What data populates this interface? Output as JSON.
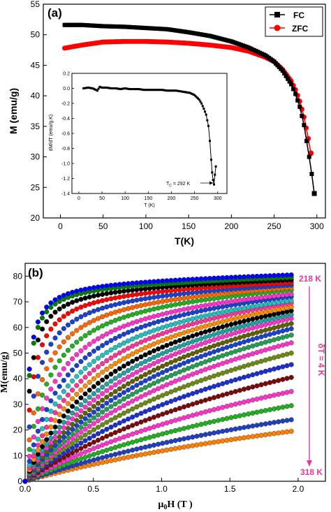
{
  "colors": {
    "fc": "#000000",
    "zfc": "#ff0000",
    "annotation": "#e6389e",
    "mh_series": [
      "#ff7f00",
      "#1f3fc0",
      "#20b020",
      "#ff33cc",
      "#7a0a0a",
      "#1a2fd0",
      "#6a8a10",
      "#ff33cc",
      "#20a050",
      "#1a40d0",
      "#606000",
      "#ff33cc",
      "#20a0a0",
      "#000000",
      "#ff8c00",
      "#ff3399",
      "#20c0c0",
      "#1a40d0",
      "#ff33cc",
      "#20b020",
      "#ff6600",
      "#1a40d0",
      "#ff0000",
      "#000000",
      "#008000",
      "#0000ff"
    ]
  },
  "panel_a": {
    "label": "(a)",
    "chart_data": {
      "type": "line",
      "xlabel": "T(K)",
      "ylabel": "M (emu/g)",
      "xlim": [
        -20,
        310
      ],
      "ylim": [
        20,
        55
      ],
      "xticks": [
        "0",
        "50",
        "100",
        "150",
        "200",
        "250",
        "300"
      ],
      "yticks": [
        "20",
        "25",
        "30",
        "35",
        "40",
        "45",
        "50",
        "55"
      ],
      "legend_position": "top-right",
      "series": [
        {
          "name": "FC",
          "marker": "square",
          "x": [
            5,
            25,
            50,
            75,
            100,
            125,
            150,
            175,
            200,
            220,
            240,
            250,
            260,
            270,
            275,
            280,
            285,
            288,
            291,
            294,
            297
          ],
          "y": [
            51.6,
            51.6,
            51.4,
            51.3,
            51.1,
            50.9,
            50.4,
            49.8,
            48.9,
            47.9,
            46.6,
            45.6,
            44.1,
            41.9,
            40.3,
            38.2,
            35.2,
            32.6,
            30.0,
            27.2,
            24.0
          ]
        },
        {
          "name": "ZFC",
          "marker": "circle",
          "x": [
            5,
            25,
            50,
            75,
            100,
            125,
            150,
            175,
            200,
            220,
            240,
            250,
            260,
            270,
            275,
            280,
            285,
            290,
            293
          ],
          "y": [
            47.8,
            48.3,
            48.8,
            48.9,
            48.9,
            48.8,
            48.6,
            48.3,
            47.9,
            47.3,
            46.3,
            45.6,
            44.3,
            42.4,
            41.0,
            39.1,
            36.5,
            33.0,
            30.6
          ]
        }
      ],
      "inset": {
        "type": "line",
        "xlabel": "T (K)",
        "ylabel": "dM/dT (emu/g.K)",
        "xlim": [
          -15,
          320
        ],
        "ylim": [
          -1.4,
          0.2
        ],
        "xticks": [
          "0",
          "50",
          "100",
          "150",
          "200",
          "250",
          "300"
        ],
        "yticks": [
          "0.2",
          "0.0",
          "-0.2",
          "-0.4",
          "-0.6",
          "-0.8",
          "-1.0",
          "-1.2",
          "-1.4"
        ],
        "annotation": "T",
        "annotation_sub": "C",
        "annotation_rest": " = 292 K",
        "annotation_x": 292,
        "annotation_y": -1.27,
        "series": [
          {
            "marker": "square",
            "x": [
              10,
              20,
              30,
              40,
              45,
              50,
              60,
              70,
              80,
              90,
              100,
              110,
              120,
              130,
              140,
              150,
              160,
              170,
              180,
              190,
              200,
              210,
              220,
              230,
              240,
              250,
              255,
              260,
              265,
              270,
              275,
              280,
              283,
              286,
              288,
              290,
              292,
              294,
              296
            ],
            "y": [
              0.0,
              0.01,
              0.0,
              -0.03,
              0.02,
              0.01,
              0.01,
              0.0,
              0.0,
              -0.01,
              0.0,
              -0.01,
              -0.01,
              -0.01,
              -0.02,
              -0.02,
              -0.02,
              -0.02,
              -0.02,
              -0.03,
              -0.03,
              -0.03,
              -0.04,
              -0.05,
              -0.06,
              -0.09,
              -0.12,
              -0.15,
              -0.2,
              -0.27,
              -0.35,
              -0.5,
              -0.7,
              -0.95,
              -1.12,
              -1.22,
              -1.28,
              -1.15,
              -1.04
            ]
          }
        ]
      }
    }
  },
  "panel_b": {
    "label": "(b)",
    "chart_data": {
      "type": "scatter",
      "xlabel_main": "μ",
      "xlabel_sub": "0",
      "xlabel_rest": "H (T )",
      "ylabel": "M(emu/g)",
      "xlim": [
        0.0,
        2.2
      ],
      "ylim": [
        0,
        85
      ],
      "xticks": [
        "0.0",
        "0.5",
        "1.0",
        "1.5",
        "2.0"
      ],
      "yticks": [
        "0",
        "10",
        "20",
        "30",
        "40",
        "50",
        "60",
        "70",
        "80"
      ],
      "annotation_top": "218 K",
      "annotation_bottom": "318 K",
      "annotation_mid": "δT = 4 K",
      "series_note": "26 isotherms from 218 K to 318 K in 4 K steps; M(2 T) values below",
      "saturation_values_at_2T": [
        80.5,
        79.5,
        78.5,
        77.5,
        76.5,
        75.5,
        74.5,
        73.0,
        72.0,
        70.5,
        69.5,
        68.0,
        66.5,
        65.0,
        63.5,
        61.5,
        59.5,
        57.0,
        54.0,
        50.0,
        45.5,
        40.5,
        35.0,
        29.5,
        24.0,
        19.5
      ]
    }
  }
}
